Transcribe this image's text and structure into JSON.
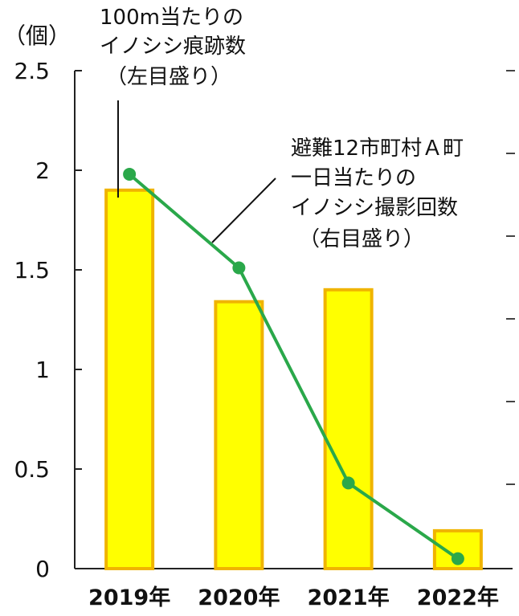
{
  "chart_data": {
    "type": "bar",
    "categories": [
      "2019年",
      "2020年",
      "2021年",
      "2022年"
    ],
    "series": [
      {
        "type": "bar",
        "axis": "left",
        "values": [
          1.9,
          1.34,
          1.4,
          0.19
        ],
        "color": "#ffff00",
        "border_color": "#f0b400"
      },
      {
        "type": "line",
        "axis": "right",
        "values": [
          1.98,
          1.51,
          0.43,
          0.05
        ],
        "color": "#2aa84a"
      }
    ],
    "left_axis": {
      "unit": "（個）",
      "ylim": [
        0,
        2.5
      ],
      "ticks": [
        "0",
        "0.5",
        "1",
        "1.5",
        "2",
        "2.5"
      ]
    },
    "right_axis": {
      "ticks_labeled": false
    },
    "annotations": {
      "bar_label": [
        "100m当たりの",
        "イノシシ痕跡数",
        "（左目盛り）"
      ],
      "line_label": [
        "避難12市町村Ａ町",
        "一日当たりの",
        "イノシシ撮影回数",
        "（右目盛り）"
      ]
    },
    "grid": false,
    "legend": "none"
  }
}
